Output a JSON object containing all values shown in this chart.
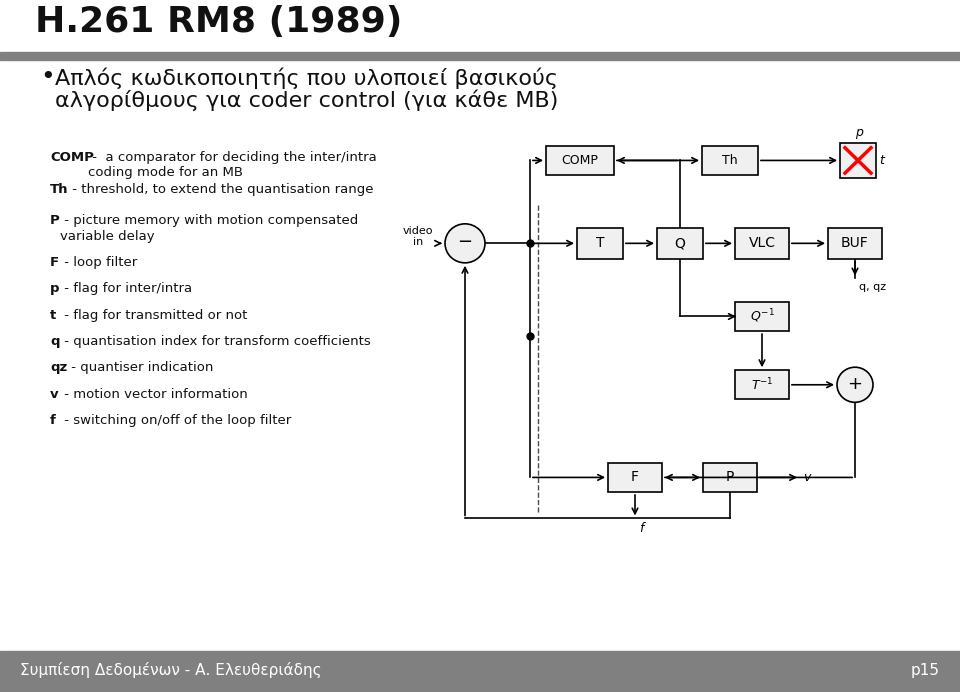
{
  "title": "H.261 RM8 (1989)",
  "subtitle_line1": "Απλός κωδικοποιητής που υλοποιεί βασικούς",
  "subtitle_line2": "αλγορίθμους για coder control (για κάθε MB)",
  "footer_left": "Συμπίεση Δεδομένων - Α. Ελευθεριάδης",
  "footer_right": "p15",
  "background": "#ffffff",
  "header_bar_color": "#808080",
  "footer_bar_color": "#808080",
  "descriptions": [
    [
      "COMP",
      " -  a comparator for deciding the inter/intra",
      "coding mode for an MB"
    ],
    [
      "Th",
      " - threshold, to extend the quantisation range",
      ""
    ],
    [
      "P",
      " - picture memory with motion compensated",
      "variable delay"
    ],
    [
      "F",
      " - loop filter",
      ""
    ],
    [
      "p",
      " - flag for inter/intra",
      ""
    ],
    [
      "t",
      " - flag for transmitted or not",
      ""
    ],
    [
      "q",
      " - quantisation index for transform coefficients",
      ""
    ],
    [
      "qz",
      " - quantiser indication",
      ""
    ],
    [
      "v",
      " - motion vector information",
      ""
    ],
    [
      "f",
      " - switching on/off of the loop filter",
      ""
    ]
  ]
}
